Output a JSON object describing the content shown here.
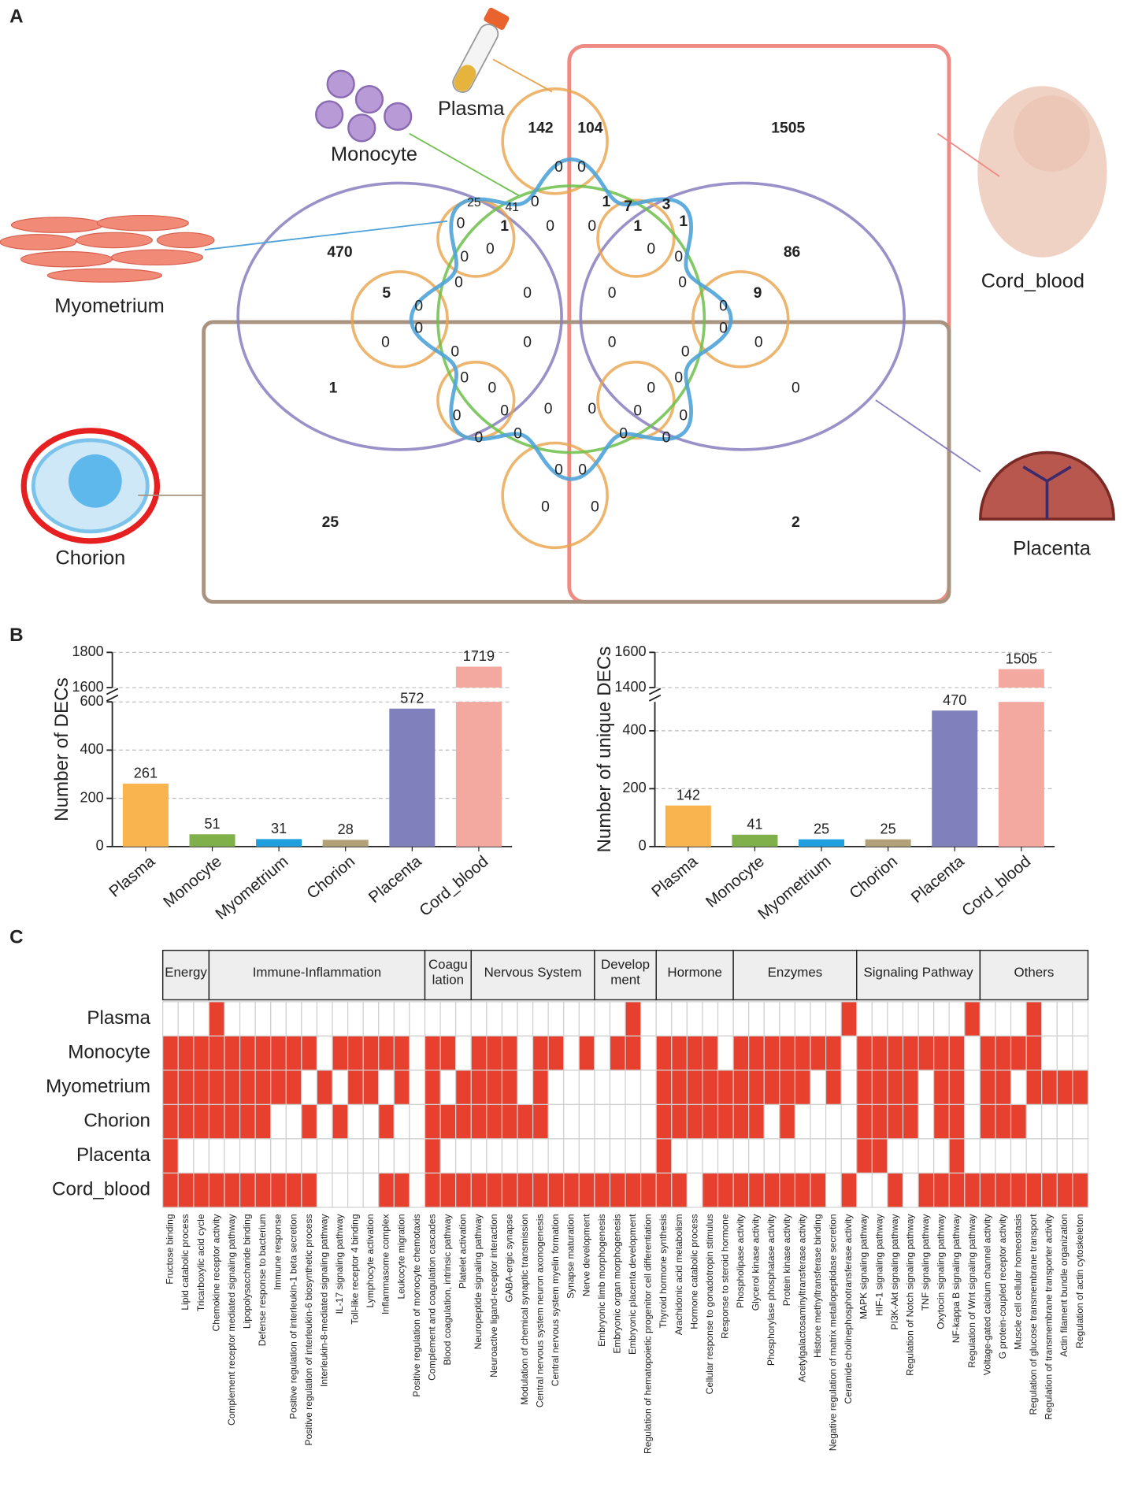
{
  "panels": [
    "A",
    "B",
    "C"
  ],
  "chart_data": [
    {
      "type": "venn",
      "sets": [
        {
          "name": "Plasma",
          "color": "#e8a24a"
        },
        {
          "name": "Monocyte",
          "color": "#6cbf4b"
        },
        {
          "name": "Myometrium",
          "color": "#4fa3d8"
        },
        {
          "name": "Cord_blood",
          "color": "#ef8a84"
        },
        {
          "name": "Placenta",
          "color": "#8a7ec0"
        },
        {
          "name": "Chorion",
          "color": "#a89380"
        }
      ],
      "values": [
        142,
        104,
        1505,
        0,
        0,
        25,
        41,
        0,
        1,
        7,
        3,
        0,
        1,
        0,
        0,
        1,
        1,
        470,
        0,
        0,
        86,
        0,
        0,
        0,
        0,
        5,
        0,
        0,
        9,
        0,
        0,
        0,
        0,
        0,
        0,
        0,
        0,
        0,
        0,
        1,
        0,
        0,
        0,
        0,
        0,
        0,
        0,
        0,
        0,
        0,
        0,
        0,
        0,
        0,
        0,
        0,
        0,
        25,
        0,
        0,
        2
      ]
    },
    {
      "type": "bar",
      "ylabel": "Number of DECs",
      "categories": [
        "Plasma",
        "Monocyte",
        "Myometrium",
        "Chorion",
        "Placenta",
        "Cord_blood"
      ],
      "values": [
        261,
        51,
        31,
        28,
        572,
        1719
      ],
      "colors": [
        "#f9b44f",
        "#7fb04a",
        "#1f9fe0",
        "#b2a079",
        "#8080bd",
        "#f4a9a0"
      ],
      "ylim": [
        0,
        1800
      ],
      "ybreak": [
        600,
        1600
      ],
      "yticks": [
        0,
        200,
        400,
        600,
        1600,
        1800
      ],
      "grid": true
    },
    {
      "type": "bar",
      "ylabel": "Number of unique DECs",
      "categories": [
        "Plasma",
        "Monocyte",
        "Myometrium",
        "Chorion",
        "Placenta",
        "Cord_blood"
      ],
      "values": [
        142,
        41,
        25,
        25,
        470,
        1505
      ],
      "colors": [
        "#f9b44f",
        "#7fb04a",
        "#1f9fe0",
        "#b2a079",
        "#8080bd",
        "#f4a9a0"
      ],
      "ylim": [
        0,
        1600
      ],
      "ybreak": [
        500,
        1400
      ],
      "yticks": [
        0,
        200,
        400,
        1400,
        1600
      ],
      "grid": true
    },
    {
      "type": "heatmap",
      "color": "#e8402e",
      "rows": [
        "Plasma",
        "Monocyte",
        "Myometrium",
        "Chorion",
        "Placenta",
        "Cord_blood"
      ],
      "groups": [
        {
          "label": "Energy",
          "columns": [
            "Fructose binding",
            "Lipid catabolic process",
            "Tricarboxylic acid cycle"
          ]
        },
        {
          "label": "Immune-Inflammation",
          "columns": [
            "Chemokine receptor activity",
            "Complement receptor mediated signaling pathway",
            "Lipopolysaccharide binding",
            "Defense response to bacterium",
            "Immune response",
            "Positive regulation of interleukin-1 beta secretion",
            "Positive regulation of interleukin-6 biosynthetic process",
            "Interleukin-8-mediated signaling pathway",
            "IL-17 signaling pathway",
            "Toll-like receptor 4 binding",
            "Lymphocyte activation",
            "Inflammasome complex",
            "Leukocyte migration",
            "Positive regulation of monocyte chemotaxis"
          ]
        },
        {
          "label": "Coagu\nlation",
          "columns": [
            "Complement and coagulation cascades",
            "Blood coagulation, intrinsic pathway",
            "Platelet activation"
          ]
        },
        {
          "label": "Nervous System",
          "columns": [
            "Neuropeptide signaling pathway",
            "Neuroactive ligand-receptor interaction",
            "GABA-ergic synapse",
            "Modulation of chemical synaptic transmission",
            "Central nervous system neuron axonogenesis",
            "Central nervous system myelin formation",
            "Synapse maturation",
            "Nerve development"
          ]
        },
        {
          "label": "Develop\nment",
          "columns": [
            "Embryonic limb morphogenesis",
            "Embryonic organ morphogenesis",
            "Embryonic placenta development",
            "Regulation of hematopoietic progenitor cell differentiation"
          ]
        },
        {
          "label": "Hormone",
          "columns": [
            "Thyroid hormone synthesis",
            "Arachidonic acid metabolism",
            "Hormone catabolic process",
            "Cellular response to gonadotropin stimulus",
            "Response to steroid hormone"
          ]
        },
        {
          "label": "Enzymes",
          "columns": [
            "Phospholipase activity",
            "Glycerol kinase activity",
            "Phosphorylase phosphatase activity",
            "Protein kinase activity",
            "Acetylgalactosaminyltransferase activity",
            "Histone methyltransferase binding",
            "Negative regulation of matrix metallopeptidase secretion",
            "Ceramide cholinephosphotransferase activity"
          ]
        },
        {
          "label": "Signaling Pathway",
          "columns": [
            "MAPK signaling pathway",
            "HIF-1 signaling pathway",
            "PI3K-Akt signaling pathway",
            "Regulation of Notch signaling pathway",
            "TNF signaling pathway",
            "Oxytocin signaling pathway",
            "NF-kappa B signaling pathway",
            "Regulation of Wnt signaling pathway"
          ]
        },
        {
          "label": "Others",
          "columns": [
            "Voltage-gated calcium channel activity",
            "G protein-coupled receptor activity",
            "Muscle cell cellular homeostasis",
            "Regulation of glucose transmembrane transport",
            "Regulation of transmembrane transporter activity",
            "Actin filament bundle organization",
            "Regulation of actin cytoskeleton"
          ]
        }
      ],
      "values": [
        [
          0,
          0,
          0,
          1,
          0,
          0,
          0,
          0,
          0,
          0,
          0,
          0,
          0,
          0,
          0,
          0,
          0,
          0,
          0,
          0,
          0,
          0,
          0,
          0,
          0,
          0,
          0,
          0,
          0,
          0,
          1,
          0,
          0,
          0,
          0,
          0,
          0,
          0,
          0,
          0,
          0,
          0,
          0,
          0,
          1,
          0,
          0,
          0,
          0,
          0,
          0,
          0,
          1,
          0,
          0,
          0,
          1,
          0,
          0,
          0
        ],
        [
          1,
          1,
          1,
          1,
          1,
          1,
          1,
          1,
          1,
          1,
          0,
          1,
          1,
          1,
          1,
          1,
          0,
          1,
          1,
          0,
          1,
          1,
          1,
          0,
          1,
          1,
          0,
          1,
          0,
          1,
          1,
          0,
          1,
          1,
          1,
          1,
          0,
          1,
          1,
          1,
          1,
          1,
          1,
          1,
          0,
          1,
          1,
          1,
          1,
          1,
          1,
          1,
          0,
          1,
          1,
          1,
          1,
          0,
          0,
          0
        ],
        [
          1,
          1,
          1,
          1,
          1,
          1,
          1,
          1,
          1,
          0,
          1,
          0,
          1,
          1,
          0,
          1,
          0,
          1,
          0,
          1,
          1,
          1,
          1,
          0,
          1,
          0,
          0,
          0,
          0,
          0,
          0,
          0,
          1,
          1,
          1,
          1,
          1,
          1,
          1,
          1,
          1,
          1,
          0,
          1,
          0,
          1,
          1,
          1,
          1,
          0,
          1,
          1,
          0,
          1,
          1,
          0,
          1,
          1,
          1,
          1
        ],
        [
          1,
          1,
          1,
          1,
          1,
          1,
          1,
          0,
          0,
          1,
          0,
          1,
          0,
          0,
          1,
          0,
          0,
          1,
          1,
          1,
          1,
          1,
          1,
          1,
          1,
          0,
          0,
          0,
          0,
          0,
          0,
          0,
          1,
          1,
          1,
          1,
          1,
          1,
          1,
          0,
          1,
          0,
          0,
          0,
          0,
          1,
          1,
          1,
          1,
          0,
          1,
          1,
          0,
          1,
          1,
          1,
          0,
          0,
          0,
          0
        ],
        [
          1,
          0,
          0,
          0,
          0,
          0,
          0,
          0,
          0,
          0,
          0,
          0,
          0,
          0,
          0,
          0,
          0,
          1,
          0,
          0,
          0,
          0,
          0,
          0,
          0,
          0,
          0,
          0,
          0,
          0,
          0,
          0,
          1,
          0,
          0,
          0,
          0,
          0,
          0,
          0,
          0,
          0,
          0,
          0,
          0,
          1,
          1,
          0,
          0,
          0,
          0,
          1,
          0,
          0,
          0,
          0,
          0,
          0,
          0,
          0
        ],
        [
          1,
          1,
          1,
          1,
          1,
          1,
          1,
          1,
          1,
          1,
          0,
          0,
          0,
          0,
          1,
          1,
          0,
          1,
          1,
          1,
          1,
          1,
          1,
          1,
          1,
          1,
          1,
          1,
          1,
          1,
          1,
          1,
          1,
          1,
          0,
          1,
          1,
          1,
          1,
          1,
          1,
          1,
          1,
          0,
          1,
          0,
          0,
          1,
          0,
          1,
          1,
          1,
          1,
          1,
          1,
          1,
          1,
          1,
          1,
          1
        ]
      ]
    }
  ]
}
